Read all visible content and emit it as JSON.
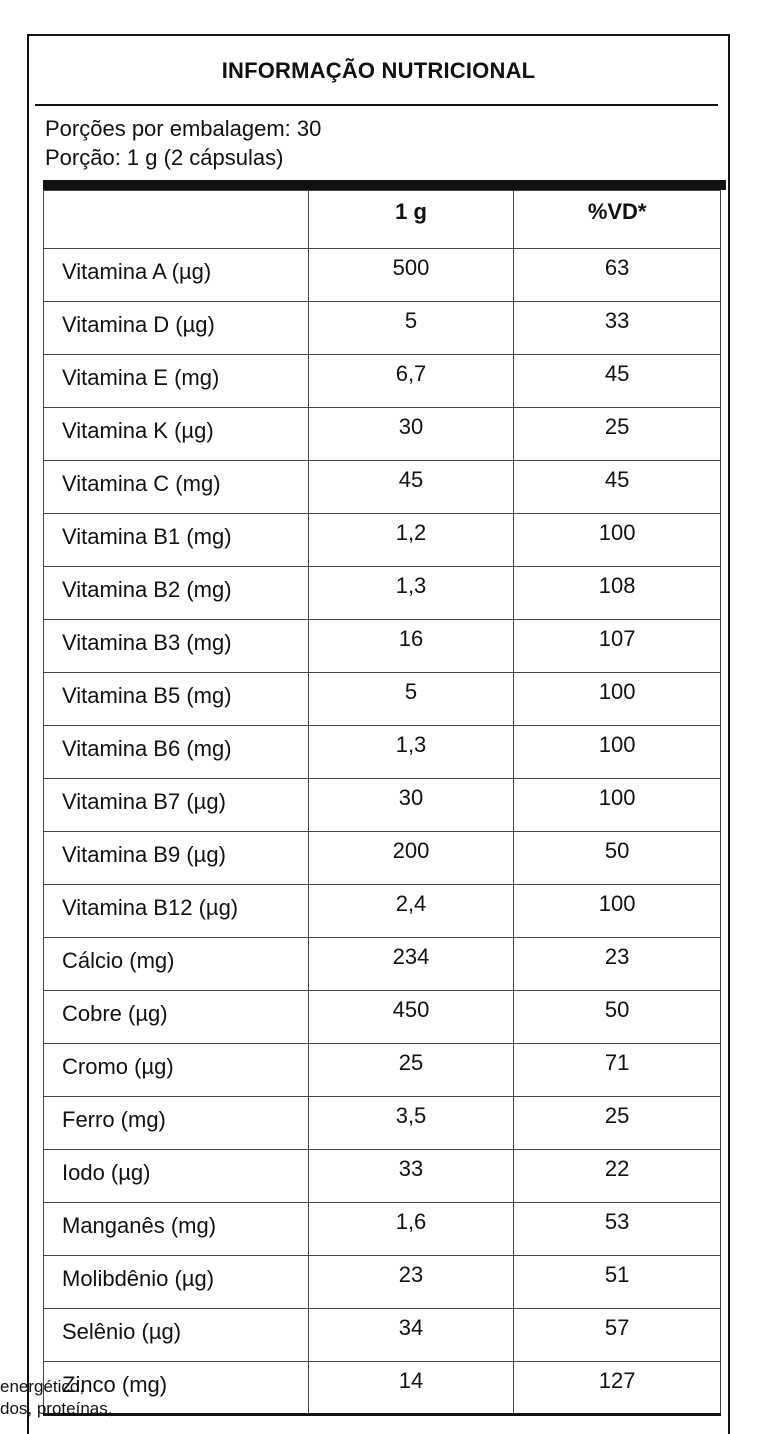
{
  "label": {
    "title": "INFORMAÇÃO NUTRICIONAL",
    "servings_per_package": "Porções por embalagem: 30",
    "serving_size": "Porção: 1 g (2 cápsulas)",
    "headers": {
      "nutrient": "",
      "amount": "1 g",
      "dv": "%VD*"
    },
    "rows": [
      {
        "name": "Vitamina A (µg)",
        "amount": "500",
        "dv": "63"
      },
      {
        "name": "Vitamina D (µg)",
        "amount": "5",
        "dv": "33"
      },
      {
        "name": "Vitamina E (mg)",
        "amount": "6,7",
        "dv": "45"
      },
      {
        "name": "Vitamina K (µg)",
        "amount": "30",
        "dv": "25"
      },
      {
        "name": "Vitamina C (mg)",
        "amount": "45",
        "dv": "45"
      },
      {
        "name": "Vitamina B1 (mg)",
        "amount": "1,2",
        "dv": "100"
      },
      {
        "name": "Vitamina B2 (mg)",
        "amount": "1,3",
        "dv": "108"
      },
      {
        "name": "Vitamina B3 (mg)",
        "amount": "16",
        "dv": "107"
      },
      {
        "name": "Vitamina B5 (mg)",
        "amount": "5",
        "dv": "100"
      },
      {
        "name": "Vitamina B6 (mg)",
        "amount": "1,3",
        "dv": "100"
      },
      {
        "name": "Vitamina B7 (µg)",
        "amount": "30",
        "dv": "100"
      },
      {
        "name": "Vitamina B9 (µg)",
        "amount": "200",
        "dv": "50"
      },
      {
        "name": "Vitamina B12 (µg)",
        "amount": "2,4",
        "dv": "100"
      },
      {
        "name": "Cálcio (mg)",
        "amount": "234",
        "dv": "23"
      },
      {
        "name": "Cobre (µg)",
        "amount": "450",
        "dv": "50"
      },
      {
        "name": "Cromo (µg)",
        "amount": "25",
        "dv": "71"
      },
      {
        "name": "Ferro (mg)",
        "amount": "3,5",
        "dv": "25"
      },
      {
        "name": "Iodo (µg)",
        "amount": "33",
        "dv": "22"
      },
      {
        "name": "Manganês (mg)",
        "amount": "1,6",
        "dv": "53"
      },
      {
        "name": "Molibdênio (µg)",
        "amount": "23",
        "dv": "51"
      },
      {
        "name": "Selênio (µg)",
        "amount": "34",
        "dv": "57"
      },
      {
        "name": "Zinco (mg)",
        "amount": "14",
        "dv": "127"
      }
    ]
  },
  "footnote": {
    "line1": "energético,",
    "line2": "dos, proteínas,"
  }
}
